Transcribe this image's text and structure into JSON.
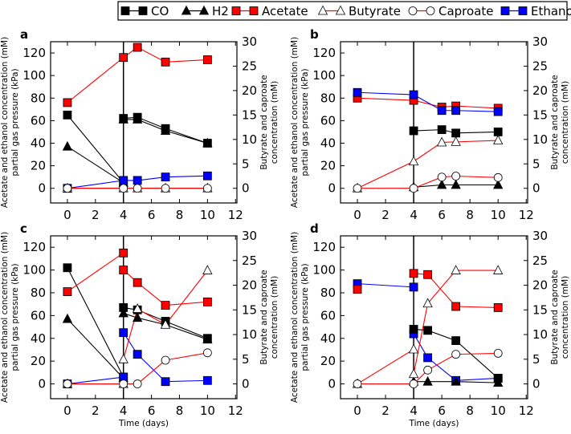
{
  "colors": {
    "black": "#000000",
    "red": "#ff0000",
    "blue": "#0000ff"
  },
  "legend": [
    {
      "label": "CO",
      "marker": "square",
      "fill": "#000000",
      "line": "#000000"
    },
    {
      "label": "H2",
      "marker": "triangle",
      "fill": "#000000",
      "line": "#000000"
    },
    {
      "label": "Acetate",
      "marker": "square",
      "fill": "#ff0000",
      "line": "#ff0000"
    },
    {
      "label": "Butyrate",
      "marker": "triangle",
      "fill": "#ffffff",
      "line": "#ff0000"
    },
    {
      "label": "Caproate",
      "marker": "circle",
      "fill": "#ffffff",
      "line": "#ff0000"
    },
    {
      "label": "Ethanol",
      "marker": "square",
      "fill": "#0000ff",
      "line": "#0000ff"
    }
  ],
  "chart_data": [
    {
      "type": "line",
      "panel": "a",
      "ylabel": "Acetate and ethanol concentration (mM)\npartial gas pressure (kPa)",
      "y2label": "Butyrate and caproate\nconcentration (mM)",
      "xlabel": "",
      "xlim": [
        -1.2,
        12.1
      ],
      "ylim": [
        -13,
        130
      ],
      "y2lim": [
        -3,
        30
      ],
      "xticks": [
        "0",
        "2",
        "4",
        "6",
        "8",
        "10",
        "12"
      ],
      "yticks": [
        "0",
        "20",
        "40",
        "60",
        "80",
        "100",
        "120"
      ],
      "y2ticks": [
        "0",
        "5",
        "10",
        "15",
        "20",
        "25",
        "30"
      ],
      "vline": 4,
      "series": [
        {
          "name": "CO",
          "axis": "left",
          "segments": [
            [
              [
                0,
                65
              ],
              [
                4,
                5
              ]
            ],
            [
              [
                4,
                62
              ],
              [
                5,
                63
              ],
              [
                7,
                53
              ],
              [
                10,
                40
              ]
            ]
          ]
        },
        {
          "name": "H2",
          "axis": "left",
          "segments": [
            [
              [
                0,
                37
              ],
              [
                4,
                5
              ]
            ],
            [
              [
                4,
                61
              ],
              [
                5,
                61
              ],
              [
                7,
                51
              ],
              [
                10,
                40
              ]
            ]
          ]
        },
        {
          "name": "Acetate",
          "axis": "left",
          "segments": [
            [
              [
                0,
                76
              ],
              [
                4,
                116
              ],
              [
                5,
                125
              ],
              [
                7,
                112
              ],
              [
                10,
                114
              ]
            ]
          ]
        },
        {
          "name": "Ethanol",
          "axis": "left",
          "segments": [
            [
              [
                0,
                0
              ],
              [
                4,
                7
              ],
              [
                5,
                7
              ],
              [
                7,
                10
              ],
              [
                10,
                11
              ]
            ]
          ]
        },
        {
          "name": "Butyrate",
          "axis": "right",
          "segments": [
            [
              [
                0,
                0
              ],
              [
                4,
                0
              ],
              [
                5,
                0
              ],
              [
                7,
                0
              ],
              [
                10,
                0
              ]
            ]
          ]
        },
        {
          "name": "Caproate",
          "axis": "right",
          "segments": [
            [
              [
                0,
                0
              ],
              [
                4,
                0
              ],
              [
                5,
                0
              ],
              [
                7,
                0
              ],
              [
                10,
                0
              ]
            ]
          ]
        }
      ]
    },
    {
      "type": "line",
      "panel": "b",
      "ylabel": "Acetate and ethanol concentration (mM)\npartial gas pressure (kPa)",
      "y2label": "Butyrate and caproate\nconcentration (mM)",
      "xlabel": "",
      "xlim": [
        -1.2,
        12.1
      ],
      "ylim": [
        -13,
        130
      ],
      "y2lim": [
        -3,
        30
      ],
      "xticks": [
        "0",
        "2",
        "4",
        "6",
        "8",
        "10",
        "12"
      ],
      "yticks": [
        "0",
        "20",
        "40",
        "60",
        "80",
        "100",
        "120"
      ],
      "y2ticks": [
        "0",
        "5",
        "10",
        "15",
        "20",
        "25",
        "30"
      ],
      "vline": 4,
      "series": [
        {
          "name": "Acetate",
          "axis": "left",
          "segments": [
            [
              [
                0,
                80
              ],
              [
                4,
                78
              ],
              [
                6,
                72
              ],
              [
                7,
                73
              ],
              [
                10,
                71
              ]
            ]
          ]
        },
        {
          "name": "Ethanol",
          "axis": "left",
          "segments": [
            [
              [
                0,
                85
              ],
              [
                4,
                83
              ],
              [
                6,
                69
              ],
              [
                7,
                69
              ],
              [
                10,
                68
              ]
            ]
          ]
        },
        {
          "name": "CO",
          "axis": "left",
          "segments": [
            [
              [
                4,
                51
              ],
              [
                6,
                52
              ],
              [
                7,
                49
              ],
              [
                10,
                50
              ]
            ]
          ]
        },
        {
          "name": "H2",
          "axis": "left",
          "segments": [
            [
              [
                4,
                1
              ],
              [
                6,
                3
              ],
              [
                7,
                3
              ],
              [
                10,
                3
              ]
            ]
          ]
        },
        {
          "name": "Butyrate",
          "axis": "right",
          "segments": [
            [
              [
                0,
                0
              ],
              [
                4,
                5.5
              ],
              [
                6,
                9.4
              ],
              [
                7,
                9.5
              ],
              [
                10,
                9.8
              ]
            ]
          ]
        },
        {
          "name": "Caproate",
          "axis": "right",
          "segments": [
            [
              [
                0,
                0
              ],
              [
                4,
                0
              ],
              [
                6,
                2.3
              ],
              [
                7,
                2.5
              ],
              [
                10,
                2.2
              ]
            ]
          ]
        }
      ]
    },
    {
      "type": "line",
      "panel": "c",
      "ylabel": "Acetate and ethanol concentration (mM)\npartial gas pressure (kPa)",
      "y2label": "Butyrate and caproate\nconcentration (mM)",
      "xlabel": "Time (days)",
      "xlim": [
        -1.2,
        12.1
      ],
      "ylim": [
        -13,
        130
      ],
      "y2lim": [
        -3,
        30
      ],
      "xticks": [
        "0",
        "2",
        "4",
        "6",
        "8",
        "10",
        "12"
      ],
      "yticks": [
        "0",
        "20",
        "40",
        "60",
        "80",
        "100",
        "120"
      ],
      "y2ticks": [
        "0",
        "5",
        "10",
        "15",
        "20",
        "25",
        "30"
      ],
      "vline": 4,
      "series": [
        {
          "name": "CO",
          "axis": "left",
          "segments": [
            [
              [
                0,
                102
              ],
              [
                4,
                6
              ]
            ],
            [
              [
                4,
                67
              ],
              [
                5,
                65
              ],
              [
                7,
                55
              ],
              [
                10,
                40
              ]
            ]
          ]
        },
        {
          "name": "H2",
          "axis": "left",
          "segments": [
            [
              [
                0,
                57
              ],
              [
                4,
                5
              ]
            ],
            [
              [
                4,
                62
              ],
              [
                5,
                58
              ],
              [
                7,
                52
              ],
              [
                10,
                39
              ]
            ]
          ]
        },
        {
          "name": "Acetate",
          "axis": "left",
          "segments": [
            [
              [
                0,
                81
              ],
              [
                4,
                115
              ]
            ],
            [
              [
                4,
                100
              ],
              [
                5,
                89
              ],
              [
                7,
                69
              ],
              [
                10,
                72
              ]
            ]
          ]
        },
        {
          "name": "Ethanol",
          "axis": "left",
          "segments": [
            [
              [
                0,
                0
              ],
              [
                4,
                6
              ]
            ],
            [
              [
                4,
                45
              ],
              [
                5,
                26
              ],
              [
                7,
                2
              ],
              [
                10,
                3
              ]
            ]
          ]
        },
        {
          "name": "Butyrate",
          "axis": "right",
          "segments": [
            [
              [
                0,
                0
              ],
              [
                4,
                0
              ]
            ],
            [
              [
                4,
                5
              ],
              [
                5,
                15.2
              ],
              [
                7,
                12
              ],
              [
                10,
                23
              ]
            ]
          ]
        },
        {
          "name": "Caproate",
          "axis": "right",
          "segments": [
            [
              [
                0,
                0
              ],
              [
                4,
                0
              ],
              [
                5,
                0
              ],
              [
                7,
                4.8
              ],
              [
                10,
                6.3
              ]
            ]
          ]
        }
      ]
    },
    {
      "type": "line",
      "panel": "d",
      "ylabel": "Acetate and ethanol concentration (mM)\npartial gas pressure (kPa)",
      "y2label": "Butyrate and caproate\nconcentration (mM)",
      "xlabel": "Time (days)",
      "xlim": [
        -1.2,
        12.1
      ],
      "ylim": [
        -13,
        130
      ],
      "y2lim": [
        -3,
        30
      ],
      "xticks": [
        "0",
        "2",
        "4",
        "6",
        "8",
        "10",
        "12"
      ],
      "yticks": [
        "0",
        "20",
        "40",
        "60",
        "80",
        "100",
        "120"
      ],
      "y2ticks": [
        "0",
        "5",
        "10",
        "15",
        "20",
        "25",
        "30"
      ],
      "vline": 4,
      "series": [
        {
          "name": "Ethanol",
          "axis": "left",
          "segments": [
            [
              [
                0,
                88
              ],
              [
                4,
                85
              ]
            ],
            [
              [
                4,
                44
              ],
              [
                5,
                23
              ],
              [
                7,
                3
              ],
              [
                10,
                5
              ]
            ]
          ]
        },
        {
          "name": "Acetate",
          "axis": "left",
          "segments": [
            [
              [
                0,
                83
              ]
            ],
            [
              [
                4,
                97
              ],
              [
                5,
                96
              ],
              [
                7,
                68
              ],
              [
                10,
                67
              ]
            ]
          ]
        },
        {
          "name": "CO",
          "axis": "left",
          "segments": [
            [
              [
                4,
                48
              ],
              [
                5,
                47
              ],
              [
                7,
                38
              ],
              [
                10,
                5
              ]
            ]
          ]
        },
        {
          "name": "H2",
          "axis": "left",
          "segments": [
            [
              [
                4,
                2
              ],
              [
                5,
                2
              ],
              [
                7,
                2
              ],
              [
                10,
                1
              ]
            ]
          ]
        },
        {
          "name": "Butyrate",
          "axis": "right",
          "segments": [
            [
              [
                0,
                0
              ],
              [
                4,
                7
              ]
            ],
            [
              [
                4,
                2
              ],
              [
                5,
                16.3
              ],
              [
                7,
                23
              ],
              [
                10,
                23
              ]
            ]
          ]
        },
        {
          "name": "Caproate",
          "axis": "right",
          "segments": [
            [
              [
                0,
                0
              ],
              [
                4,
                0
              ],
              [
                5,
                2.8
              ],
              [
                7,
                6
              ],
              [
                10,
                6.2
              ]
            ]
          ]
        }
      ]
    }
  ]
}
